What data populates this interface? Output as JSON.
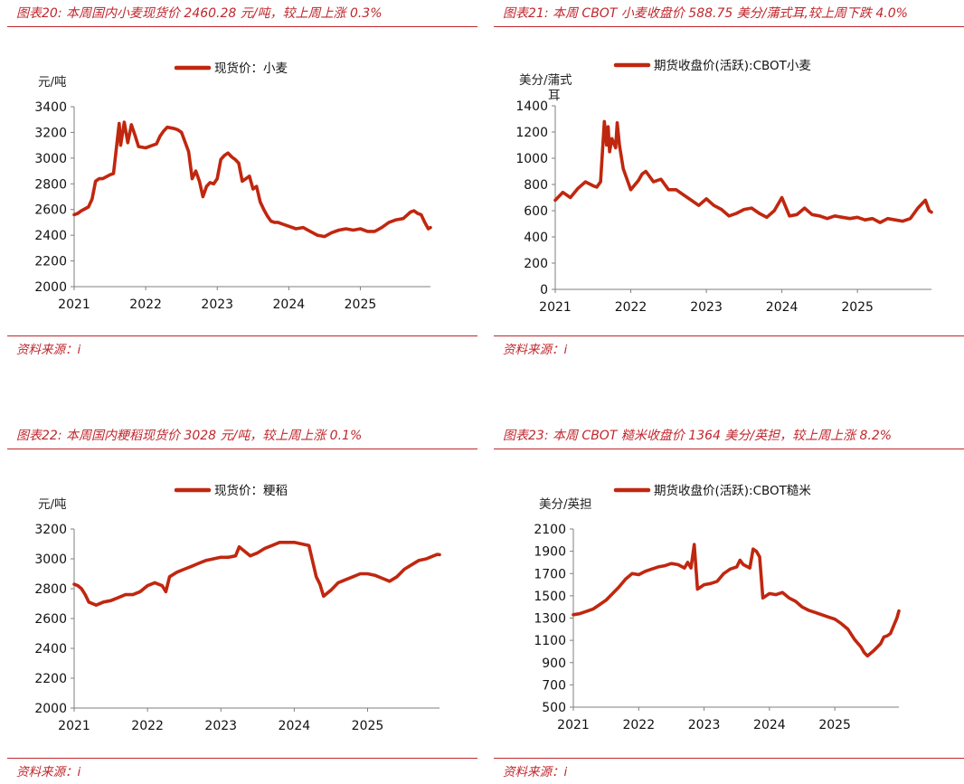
{
  "figures": [
    {
      "title": "图表20:  本周国内小麦现货价 2460.28 元/吨，较上周上涨 0.3%",
      "source": "资料来源：i",
      "chart_data": {
        "type": "line",
        "title": "本周国内小麦现货价 2460.28 元/吨，较上周上涨 0.3%",
        "ylabel": "元/吨",
        "xlabel": "",
        "ylim": [
          2000,
          3400
        ],
        "yticks": [
          2000,
          2200,
          2400,
          2600,
          2800,
          3000,
          3200,
          3400
        ],
        "xlim": [
          2021.0,
          2025.98
        ],
        "xticks": [
          2021,
          2022,
          2023,
          2024,
          2025
        ],
        "grid": false,
        "legend": "top-center",
        "color": "#c0270f",
        "series": [
          {
            "name": "现货价：小麦",
            "x": [
              2021.0,
              2021.05,
              2021.1,
              2021.2,
              2021.25,
              2021.3,
              2021.35,
              2021.4,
              2021.5,
              2021.55,
              2021.63,
              2021.65,
              2021.7,
              2021.75,
              2021.8,
              2021.85,
              2021.9,
              2022.0,
              2022.1,
              2022.15,
              2022.2,
              2022.25,
              2022.3,
              2022.4,
              2022.45,
              2022.5,
              2022.6,
              2022.65,
              2022.7,
              2022.75,
              2022.8,
              2022.85,
              2022.9,
              2022.95,
              2023.0,
              2023.05,
              2023.1,
              2023.15,
              2023.2,
              2023.25,
              2023.3,
              2023.35,
              2023.4,
              2023.45,
              2023.5,
              2023.55,
              2023.6,
              2023.65,
              2023.7,
              2023.75,
              2023.8,
              2023.85,
              2023.9,
              2024.0,
              2024.1,
              2024.2,
              2024.3,
              2024.4,
              2024.5,
              2024.6,
              2024.7,
              2024.8,
              2024.9,
              2025.0,
              2025.1,
              2025.2,
              2025.3,
              2025.4,
              2025.5,
              2025.6,
              2025.7,
              2025.75,
              2025.8,
              2025.85,
              2025.9,
              2025.95,
              2025.98
            ],
            "y": [
              2560,
              2570,
              2590,
              2620,
              2680,
              2820,
              2840,
              2840,
              2870,
              2880,
              3270,
              3100,
              3280,
              3120,
              3260,
              3180,
              3090,
              3080,
              3100,
              3110,
              3170,
              3210,
              3240,
              3230,
              3220,
              3200,
              3050,
              2840,
              2900,
              2820,
              2700,
              2780,
              2810,
              2800,
              2840,
              2990,
              3020,
              3040,
              3010,
              2990,
              2960,
              2820,
              2840,
              2860,
              2760,
              2780,
              2660,
              2600,
              2550,
              2510,
              2500,
              2500,
              2490,
              2470,
              2450,
              2460,
              2430,
              2400,
              2390,
              2420,
              2440,
              2450,
              2440,
              2450,
              2430,
              2430,
              2460,
              2500,
              2520,
              2530,
              2580,
              2590,
              2570,
              2560,
              2500,
              2450,
              2460
            ]
          }
        ]
      }
    },
    {
      "title": "图表21:  本周 CBOT 小麦收盘价 588.75 美分/蒲式耳,较上周下跌 4.0%",
      "source": "资料来源：i",
      "chart_data": {
        "type": "line",
        "title": "本周 CBOT 小麦收盘价 588.75 美分/蒲式耳,较上周下跌 4.0%",
        "ylabel": "美分/蒲式耳",
        "xlabel": "",
        "ylim": [
          0,
          1400
        ],
        "yticks": [
          0,
          200,
          400,
          600,
          800,
          1000,
          1200,
          1400
        ],
        "xlim": [
          2021.0,
          2025.98
        ],
        "xticks": [
          2021,
          2022,
          2023,
          2024,
          2025
        ],
        "grid": false,
        "legend": "top-center",
        "color": "#c0270f",
        "series": [
          {
            "name": "期货收盘价(活跃):CBOT小麦",
            "x": [
              2021.0,
              2021.1,
              2021.2,
              2021.3,
              2021.4,
              2021.5,
              2021.55,
              2021.6,
              2021.65,
              2021.68,
              2021.7,
              2021.72,
              2021.75,
              2021.8,
              2021.82,
              2021.85,
              2021.9,
              2022.0,
              2022.1,
              2022.15,
              2022.2,
              2022.3,
              2022.4,
              2022.5,
              2022.6,
              2022.7,
              2022.8,
              2022.9,
              2023.0,
              2023.1,
              2023.2,
              2023.3,
              2023.4,
              2023.5,
              2023.6,
              2023.7,
              2023.8,
              2023.9,
              2024.0,
              2024.1,
              2024.2,
              2024.3,
              2024.4,
              2024.5,
              2024.6,
              2024.7,
              2024.8,
              2024.9,
              2025.0,
              2025.1,
              2025.2,
              2025.3,
              2025.4,
              2025.5,
              2025.6,
              2025.7,
              2025.75,
              2025.8,
              2025.85,
              2025.9,
              2025.95,
              2025.98
            ],
            "y": [
              680,
              740,
              700,
              770,
              820,
              790,
              780,
              820,
              1280,
              1100,
              1240,
              1050,
              1150,
              1080,
              1270,
              1100,
              920,
              760,
              830,
              880,
              900,
              820,
              840,
              760,
              760,
              720,
              680,
              640,
              690,
              640,
              610,
              560,
              580,
              610,
              620,
              580,
              550,
              600,
              700,
              560,
              570,
              620,
              570,
              560,
              540,
              560,
              550,
              540,
              550,
              530,
              540,
              510,
              540,
              530,
              520,
              540,
              580,
              620,
              650,
              680,
              600,
              589
            ]
          }
        ]
      }
    },
    {
      "title": "图表22:  本周国内粳稻现货价 3028 元/吨，较上周上涨 0.1%",
      "source": "资料来源：i",
      "chart_data": {
        "type": "line",
        "title": "本周国内粳稻现货价 3028 元/吨，较上周上涨 0.1%",
        "ylabel": "元/吨",
        "xlabel": "",
        "ylim": [
          2000,
          3200
        ],
        "yticks": [
          2000,
          2200,
          2400,
          2600,
          2800,
          3000,
          3200
        ],
        "xlim": [
          2021.0,
          2025.98
        ],
        "xticks": [
          2021,
          2022,
          2023,
          2024,
          2025
        ],
        "grid": false,
        "legend": "top-center",
        "color": "#c0270f",
        "series": [
          {
            "name": "现货价：粳稻",
            "x": [
              2021.0,
              2021.05,
              2021.1,
              2021.15,
              2021.2,
              2021.3,
              2021.4,
              2021.5,
              2021.6,
              2021.7,
              2021.8,
              2021.9,
              2022.0,
              2022.1,
              2022.2,
              2022.25,
              2022.3,
              2022.4,
              2022.5,
              2022.6,
              2022.7,
              2022.8,
              2022.9,
              2023.0,
              2023.1,
              2023.2,
              2023.25,
              2023.3,
              2023.4,
              2023.5,
              2023.6,
              2023.7,
              2023.8,
              2023.9,
              2024.0,
              2024.1,
              2024.2,
              2024.3,
              2024.35,
              2024.4,
              2024.5,
              2024.6,
              2024.7,
              2024.8,
              2024.9,
              2025.0,
              2025.1,
              2025.2,
              2025.3,
              2025.4,
              2025.5,
              2025.6,
              2025.7,
              2025.8,
              2025.85,
              2025.9,
              2025.95,
              2025.98
            ],
            "y": [
              2830,
              2820,
              2800,
              2760,
              2710,
              2690,
              2710,
              2720,
              2740,
              2760,
              2760,
              2780,
              2820,
              2840,
              2820,
              2780,
              2880,
              2910,
              2930,
              2950,
              2970,
              2990,
              3000,
              3010,
              3010,
              3020,
              3080,
              3060,
              3020,
              3040,
              3070,
              3090,
              3110,
              3110,
              3110,
              3100,
              3090,
              2880,
              2830,
              2750,
              2790,
              2840,
              2860,
              2880,
              2900,
              2900,
              2890,
              2870,
              2850,
              2880,
              2930,
              2960,
              2990,
              3000,
              3010,
              3020,
              3030,
              3028
            ]
          }
        ]
      }
    },
    {
      "title": "图表23:  本周 CBOT 糙米收盘价 1364 美分/英担，较上周上涨 8.2%",
      "source": "资料来源：i",
      "chart_data": {
        "type": "line",
        "title": "本周 CBOT 糙米收盘价 1364 美分/英担，较上周上涨 8.2%",
        "ylabel": "美分/英担",
        "xlabel": "",
        "ylim": [
          500,
          2100
        ],
        "yticks": [
          500,
          700,
          900,
          1100,
          1300,
          1500,
          1700,
          1900,
          2100
        ],
        "xlim": [
          2021.0,
          2025.98
        ],
        "xticks": [
          2021,
          2022,
          2023,
          2024,
          2025
        ],
        "grid": false,
        "legend": "top-center",
        "color": "#c0270f",
        "series": [
          {
            "name": "期货收盘价(活跃):CBOT糙米",
            "x": [
              2021.0,
              2021.1,
              2021.2,
              2021.3,
              2021.4,
              2021.5,
              2021.6,
              2021.7,
              2021.8,
              2021.9,
              2022.0,
              2022.1,
              2022.2,
              2022.3,
              2022.4,
              2022.5,
              2022.6,
              2022.7,
              2022.75,
              2022.8,
              2022.85,
              2022.9,
              2023.0,
              2023.1,
              2023.2,
              2023.3,
              2023.4,
              2023.5,
              2023.55,
              2023.6,
              2023.7,
              2023.75,
              2023.8,
              2023.85,
              2023.9,
              2024.0,
              2024.1,
              2024.2,
              2024.3,
              2024.4,
              2024.5,
              2024.6,
              2024.7,
              2024.8,
              2024.9,
              2025.0,
              2025.1,
              2025.2,
              2025.3,
              2025.4,
              2025.45,
              2025.5,
              2025.6,
              2025.7,
              2025.75,
              2025.8,
              2025.85,
              2025.9,
              2025.95,
              2025.98
            ],
            "y": [
              1330,
              1340,
              1360,
              1380,
              1420,
              1460,
              1520,
              1580,
              1650,
              1700,
              1690,
              1720,
              1740,
              1760,
              1770,
              1790,
              1780,
              1750,
              1800,
              1750,
              1960,
              1560,
              1600,
              1610,
              1630,
              1700,
              1740,
              1760,
              1820,
              1780,
              1750,
              1920,
              1900,
              1850,
              1480,
              1520,
              1510,
              1530,
              1480,
              1450,
              1400,
              1370,
              1350,
              1330,
              1310,
              1290,
              1250,
              1200,
              1110,
              1040,
              990,
              960,
              1010,
              1070,
              1130,
              1140,
              1160,
              1230,
              1300,
              1364
            ]
          }
        ]
      }
    }
  ]
}
